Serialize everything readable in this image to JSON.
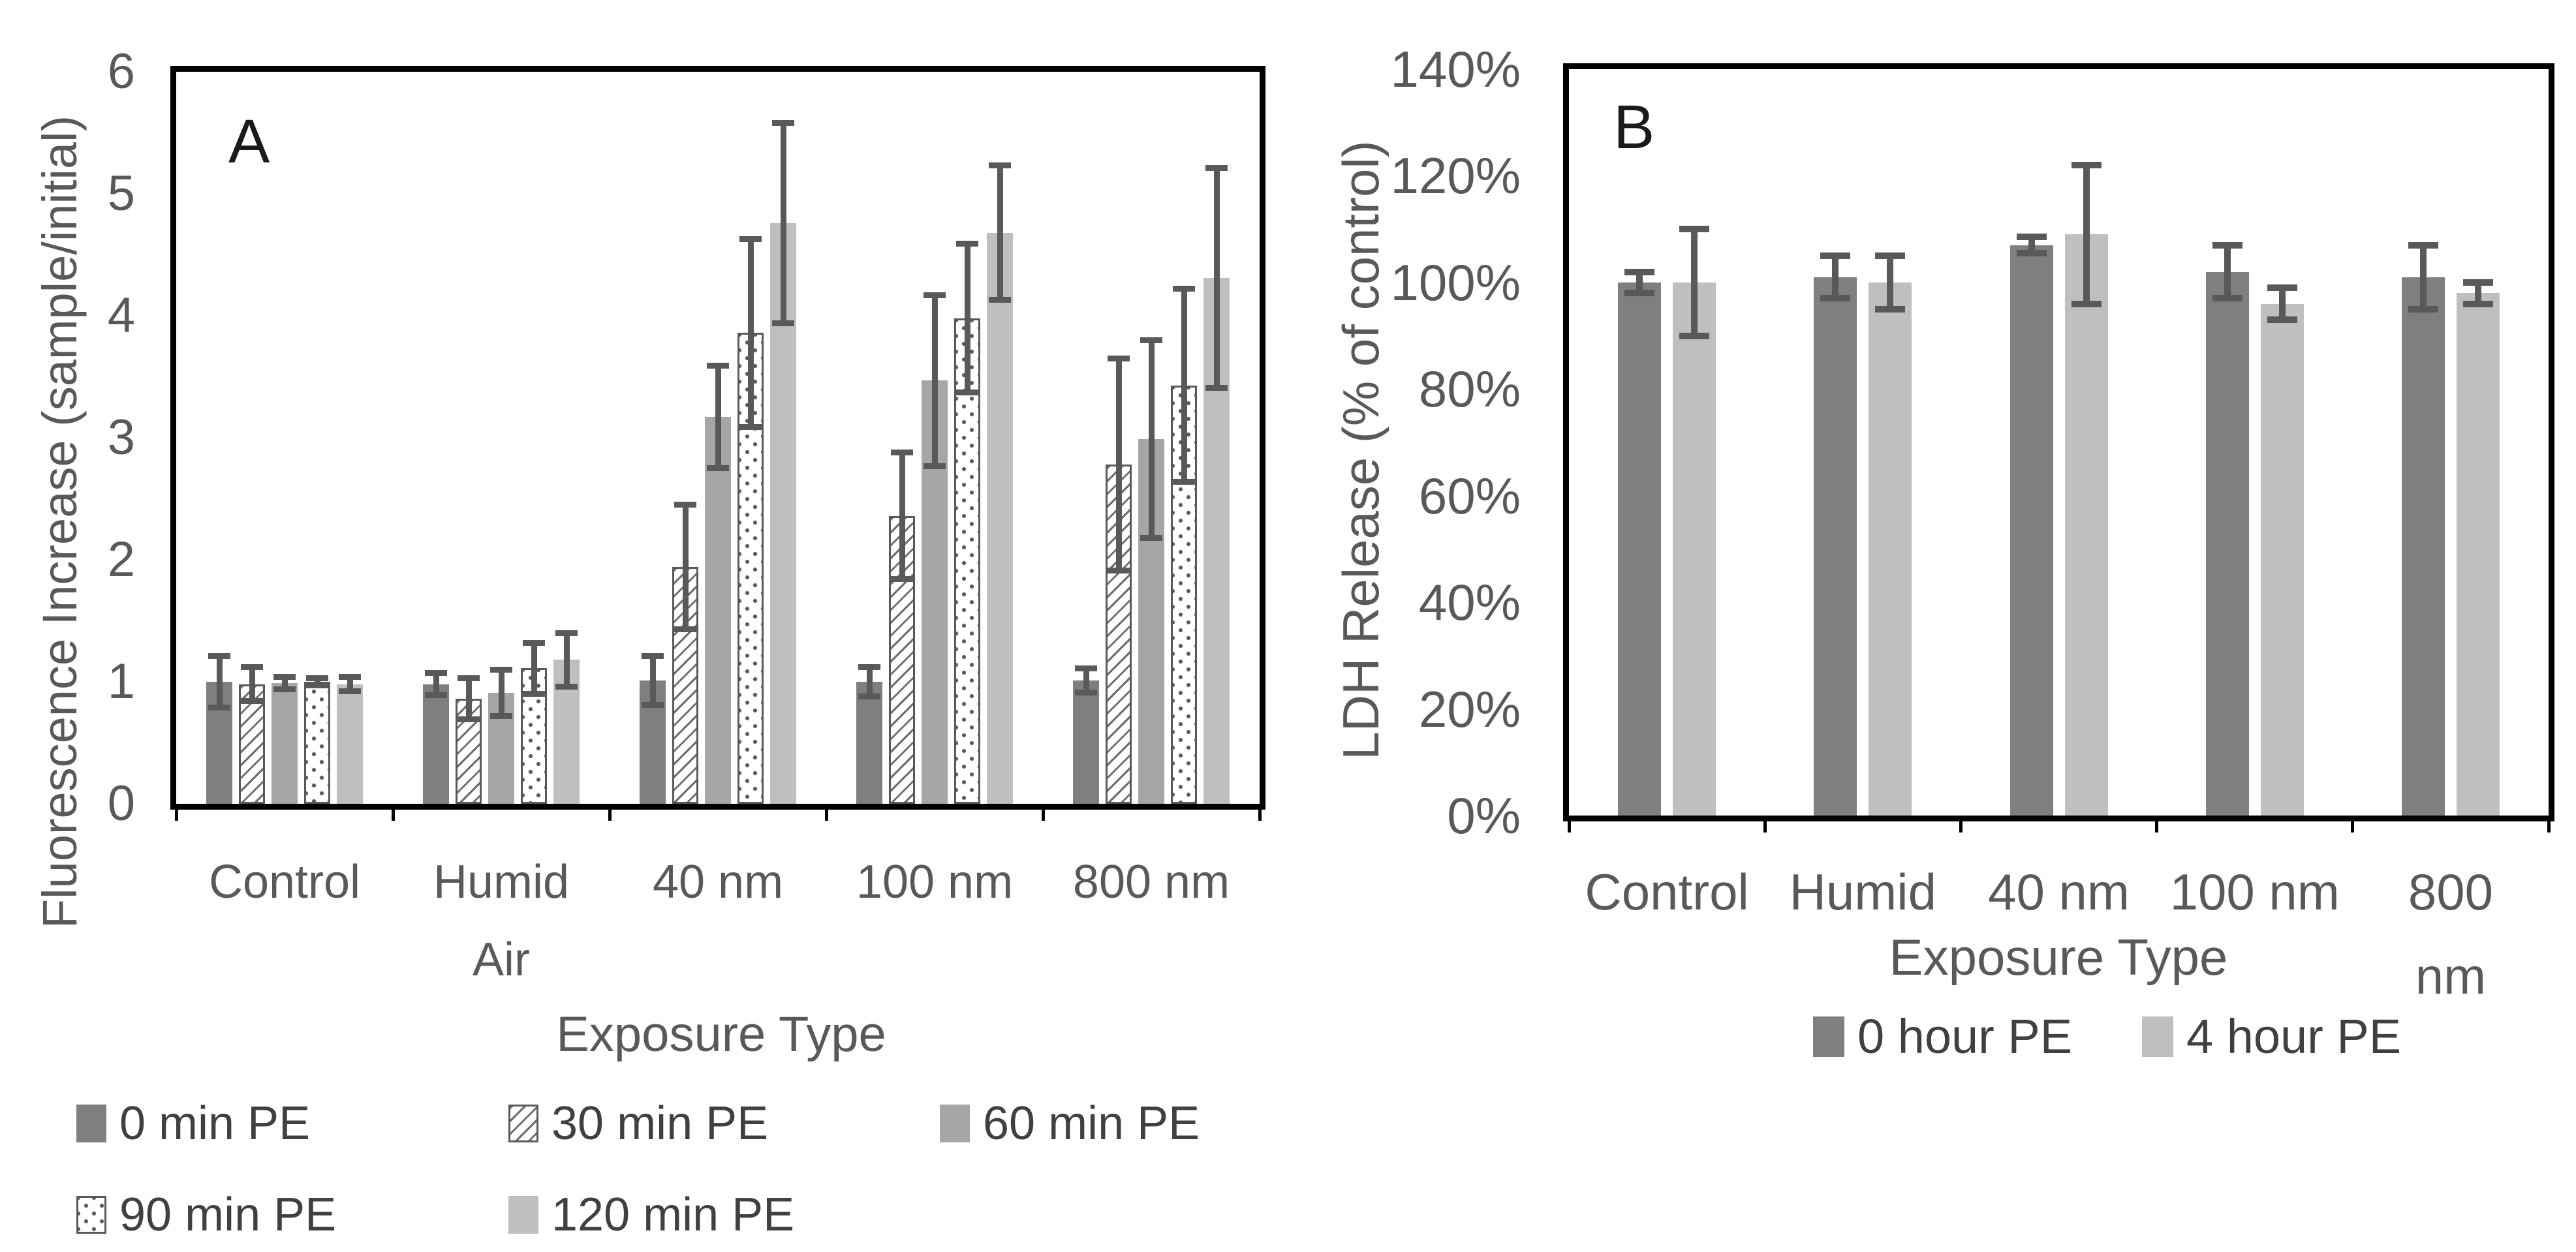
{
  "figure": {
    "panel_a_label": "A",
    "panel_b_label": "B"
  },
  "colors": {
    "series_dark": "#7f7f7f",
    "series_medium": "#a6a6a6",
    "series_light": "#bfbfbf",
    "pattern_stroke": "#595959",
    "error_bar": "#595959",
    "axis_text": "#595959",
    "frame": "#000000"
  },
  "chart_data": [
    {
      "id": "A",
      "type": "bar",
      "title": "",
      "xlabel": "Exposure Type",
      "ylabel": "Fluorescence Increase (sample/initial)",
      "categories": [
        "Control",
        "Humid\nAir",
        "40 nm",
        "100 nm",
        "800 nm"
      ],
      "ylim": [
        0,
        6
      ],
      "grid": false,
      "legend_position": "bottom-left",
      "y_ticks": [
        {
          "label": "0",
          "value": 0
        },
        {
          "label": "1",
          "value": 1
        },
        {
          "label": "2",
          "value": 2
        },
        {
          "label": "3",
          "value": 3
        },
        {
          "label": "4",
          "value": 4
        },
        {
          "label": "5",
          "value": 5
        },
        {
          "label": "6",
          "value": 6
        }
      ],
      "series": [
        {
          "name": "0 min PE",
          "style": "dark",
          "values": [
            1.0,
            0.98,
            1.01,
            1.0,
            1.01
          ],
          "errors": [
            0.21,
            0.09,
            0.2,
            0.12,
            0.1
          ]
        },
        {
          "name": "30 min PE",
          "style": "hatch",
          "values": [
            0.98,
            0.86,
            1.94,
            2.36,
            2.78
          ],
          "errors": [
            0.14,
            0.17,
            0.51,
            0.52,
            0.87
          ]
        },
        {
          "name": "60 min PE",
          "style": "medium",
          "values": [
            0.99,
            0.91,
            3.17,
            3.47,
            2.99
          ],
          "errors": [
            0.05,
            0.19,
            0.42,
            0.7,
            0.81
          ]
        },
        {
          "name": "90 min PE",
          "style": "dots",
          "values": [
            1.0,
            1.11,
            3.86,
            3.98,
            3.43
          ],
          "errors": [
            0.03,
            0.21,
            0.77,
            0.61,
            0.79
          ]
        },
        {
          "name": "120 min PE",
          "style": "light",
          "values": [
            0.98,
            1.18,
            4.76,
            4.68,
            4.31
          ],
          "errors": [
            0.06,
            0.22,
            0.82,
            0.55,
            0.9
          ]
        }
      ]
    },
    {
      "id": "B",
      "type": "bar",
      "title": "",
      "xlabel": "Exposure Type",
      "ylabel": "LDH Release (% of control)",
      "categories": [
        "Control",
        "Humid",
        "40 nm",
        "100 nm",
        "800 nm"
      ],
      "ylim": [
        0,
        140
      ],
      "grid": false,
      "legend_position": "bottom-center",
      "y_ticks": [
        {
          "label": "0%",
          "value": 0
        },
        {
          "label": "20%",
          "value": 20
        },
        {
          "label": "40%",
          "value": 40
        },
        {
          "label": "60%",
          "value": 60
        },
        {
          "label": "80%",
          "value": 80
        },
        {
          "label": "100%",
          "value": 100
        },
        {
          "label": "120%",
          "value": 120
        },
        {
          "label": "140%",
          "value": 140
        }
      ],
      "series": [
        {
          "name": "0 hour PE",
          "style": "dark",
          "values": [
            100,
            101,
            107,
            102,
            101
          ],
          "errors": [
            2,
            4,
            1.5,
            5,
            6
          ]
        },
        {
          "name": "4 hour PE",
          "style": "light",
          "values": [
            100,
            100,
            109,
            96,
            98
          ],
          "errors": [
            10,
            5,
            13,
            3,
            2
          ]
        }
      ]
    }
  ]
}
